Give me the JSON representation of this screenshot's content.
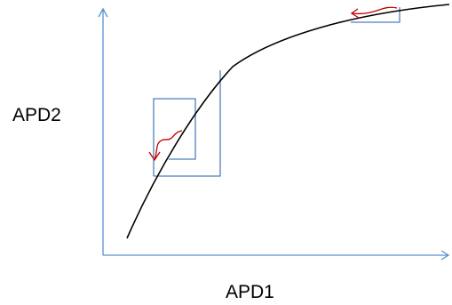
{
  "axes": {
    "x_label": "APD1",
    "y_label": "APD2"
  },
  "colors": {
    "axis": "#5a8fd0",
    "curve": "#000000",
    "construction": "#4f7ec0",
    "arrow": "#c00000",
    "background": "#ffffff"
  }
}
